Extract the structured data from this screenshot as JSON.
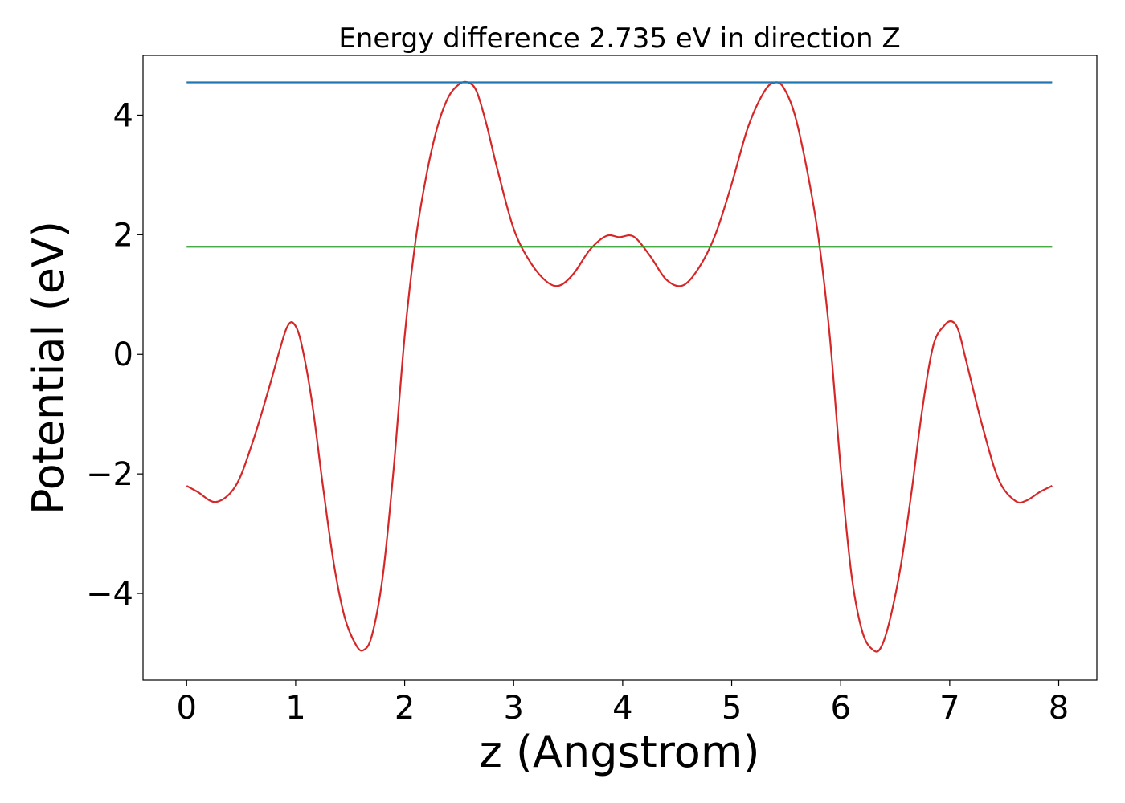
{
  "chart_data": {
    "type": "line",
    "title": "Energy difference 2.735 eV in direction Z",
    "xlabel": "z (Angstrom)",
    "ylabel": "Potential (eV)",
    "xlim": [
      -0.4,
      8.35
    ],
    "ylim": [
      -5.45,
      5.0
    ],
    "x_ticks": [
      0,
      1,
      2,
      3,
      4,
      5,
      6,
      7,
      8
    ],
    "x_tick_labels": [
      "0",
      "1",
      "2",
      "3",
      "4",
      "5",
      "6",
      "7",
      "8"
    ],
    "y_ticks": [
      -4,
      -2,
      0,
      2,
      4
    ],
    "y_tick_labels": [
      "−4",
      "−2",
      "0",
      "2",
      "4"
    ],
    "grid": false,
    "series": [
      {
        "color": "#d62728",
        "x": [
          0,
          0.1,
          0.27,
          0.45,
          0.6,
          0.75,
          0.85,
          0.92,
          0.98,
          1.05,
          1.15,
          1.25,
          1.35,
          1.45,
          1.55,
          1.62,
          1.7,
          1.8,
          1.9,
          2.0,
          2.1,
          2.2,
          2.3,
          2.4,
          2.5,
          2.58,
          2.66,
          2.75,
          2.85,
          3.0,
          3.15,
          3.3,
          3.42,
          3.55,
          3.7,
          3.85,
          3.97,
          4.1,
          4.25,
          4.4,
          4.55,
          4.7,
          4.85,
          5.0,
          5.15,
          5.3,
          5.4,
          5.48,
          5.58,
          5.7,
          5.8,
          5.9,
          6.0,
          6.1,
          6.2,
          6.3,
          6.37,
          6.45,
          6.55,
          6.65,
          6.75,
          6.85,
          6.95,
          7.02,
          7.08,
          7.15,
          7.3,
          7.45,
          7.6,
          7.7,
          7.83,
          7.94
        ],
        "y": [
          -2.2,
          -2.3,
          -2.47,
          -2.2,
          -1.5,
          -0.6,
          0.05,
          0.45,
          0.52,
          0.2,
          -0.8,
          -2.2,
          -3.5,
          -4.4,
          -4.85,
          -4.95,
          -4.7,
          -3.7,
          -1.9,
          0.3,
          1.9,
          3.0,
          3.8,
          4.3,
          4.52,
          4.55,
          4.4,
          3.85,
          3.1,
          2.1,
          1.55,
          1.22,
          1.15,
          1.35,
          1.75,
          1.98,
          1.96,
          1.97,
          1.65,
          1.25,
          1.15,
          1.45,
          2.0,
          2.85,
          3.8,
          4.4,
          4.55,
          4.45,
          4.0,
          3.0,
          1.9,
          0.3,
          -1.9,
          -3.7,
          -4.65,
          -4.95,
          -4.9,
          -4.45,
          -3.55,
          -2.3,
          -0.9,
          0.15,
          0.48,
          0.55,
          0.4,
          -0.1,
          -1.2,
          -2.1,
          -2.45,
          -2.45,
          -2.3,
          -2.2
        ]
      },
      {
        "color": "#1f77b4",
        "x": [
          0,
          7.94
        ],
        "y": [
          4.55,
          4.55
        ]
      },
      {
        "color": "#2ca02c",
        "x": [
          0,
          7.94
        ],
        "y": [
          1.8,
          1.8
        ]
      }
    ]
  }
}
